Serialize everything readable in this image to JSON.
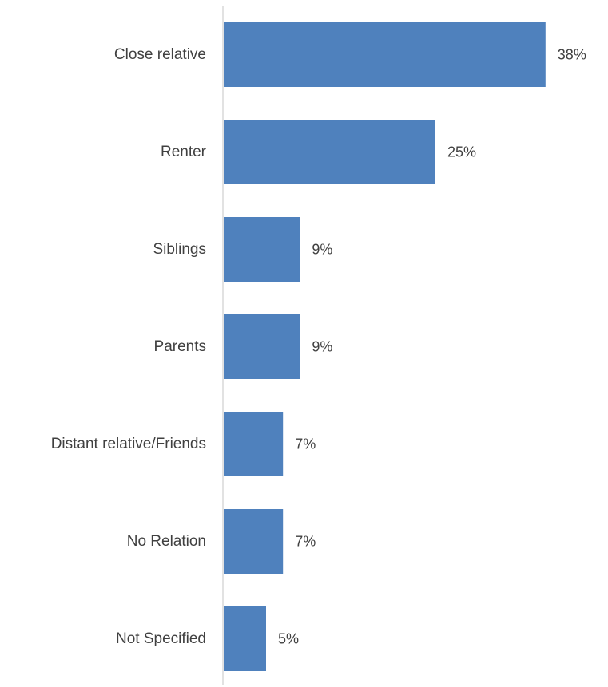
{
  "chart_data": {
    "type": "bar",
    "orientation": "horizontal",
    "title": "",
    "xlabel": "",
    "ylabel": "",
    "categories": [
      "Close relative",
      "Renter",
      "Siblings",
      "Parents",
      "Distant relative/Friends",
      "No Relation",
      "Not Specified"
    ],
    "values": [
      38,
      25,
      9,
      9,
      7,
      7,
      5
    ],
    "value_labels": [
      "38%",
      "25%",
      "9%",
      "9%",
      "7%",
      "7%",
      "5%"
    ],
    "unit": "%",
    "xlim": [
      0,
      40
    ],
    "grid": false,
    "legend": "none",
    "colors": {
      "bar": "#4f81bd",
      "axis": "#d9d9d9",
      "text": "#404040"
    }
  }
}
